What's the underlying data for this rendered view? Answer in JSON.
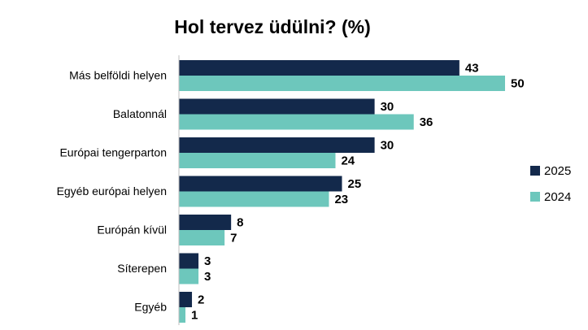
{
  "colors": {
    "series_2025": "#13294b",
    "series_2024": "#6dc7bc",
    "axis": "#bfbfbf"
  },
  "chart_data": {
    "type": "bar",
    "orientation": "horizontal",
    "title": "Hol tervez üdülni? (%)",
    "categories": [
      "Más belföldi helyen",
      "Balatonnál",
      "Európai tengerparton",
      "Egyéb európai helyen",
      "Európán kívül",
      "Síterepen",
      "Egyéb"
    ],
    "series": [
      {
        "name": "2025",
        "values": [
          43,
          30,
          30,
          25,
          8,
          3,
          2
        ]
      },
      {
        "name": "2024",
        "values": [
          50,
          36,
          24,
          23,
          7,
          3,
          1
        ]
      }
    ],
    "xlim": [
      0,
      50
    ],
    "data_labels": true,
    "grid": false,
    "legend": "right"
  }
}
